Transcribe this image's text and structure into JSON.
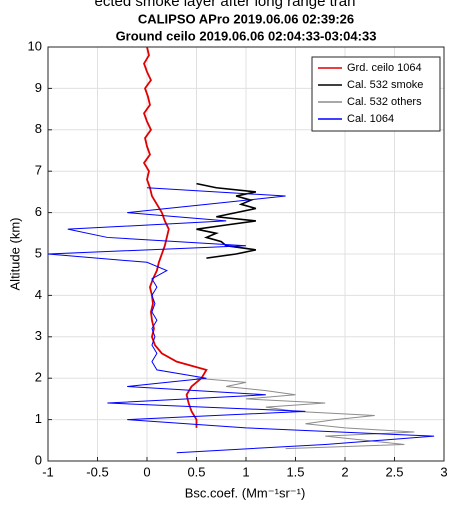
{
  "chart_data": {
    "type": "line",
    "header_fragment": "ected smoke layer after long range tran",
    "title": "CALIPSO APro 2019.06.06 02:39:26",
    "subtitle": "Ground ceilo 2019.06.06 02:04:33-03:04:33",
    "x_label": "Bsc.coef. (Mm⁻¹sr⁻¹)",
    "y_label": "Altitude (km)",
    "xlim": [
      -1,
      3
    ],
    "xticks": [
      -1,
      -0.5,
      0,
      0.5,
      1,
      1.5,
      2,
      2.5,
      3
    ],
    "ylim": [
      0,
      10
    ],
    "yticks": [
      0,
      1,
      2,
      3,
      4,
      5,
      6,
      7,
      8,
      9,
      10
    ],
    "grid": true,
    "legend": "upper right",
    "series": [
      {
        "name": "Grd. ceilo 1064",
        "color": "#e00000",
        "x": [
          0.5,
          0.5,
          0.45,
          0.42,
          0.4,
          0.45,
          0.55,
          0.6,
          0.3,
          0.15,
          0.08,
          0.05,
          0.07,
          0.05,
          0.04,
          0.06,
          0.05,
          0.03,
          0.06,
          0.1,
          0.12,
          0.15,
          0.18,
          0.2,
          0.22,
          0.18,
          0.15,
          0.1,
          0.05,
          0.03,
          0.0,
          0.02,
          -0.03,
          0.03,
          0.0,
          -0.02,
          0.04,
          0.0,
          -0.03,
          0.03,
          0.01,
          -0.02,
          0.04,
          0.0,
          -0.03,
          0.02,
          0.0
        ],
        "y": [
          0.8,
          1.0,
          1.2,
          1.4,
          1.6,
          1.8,
          2.0,
          2.2,
          2.4,
          2.6,
          2.8,
          3.0,
          3.2,
          3.4,
          3.6,
          3.8,
          4.0,
          4.2,
          4.4,
          4.6,
          4.8,
          5.0,
          5.2,
          5.4,
          5.6,
          5.8,
          6.0,
          6.2,
          6.4,
          6.6,
          6.8,
          7.0,
          7.2,
          7.4,
          7.6,
          7.8,
          8.0,
          8.2,
          8.4,
          8.6,
          8.8,
          9.0,
          9.2,
          9.4,
          9.6,
          9.8,
          10.0
        ]
      },
      {
        "name": "Cal. 532 smoke",
        "color": "#000000",
        "x": [
          0.6,
          0.9,
          1.1,
          0.8,
          0.75,
          0.6,
          0.7,
          0.5,
          0.8,
          1.1,
          0.7,
          0.9,
          1.1,
          0.95,
          1.05,
          0.9,
          1.1,
          0.7,
          0.5
        ],
        "y": [
          4.9,
          5.0,
          5.1,
          5.2,
          5.3,
          5.4,
          5.5,
          5.6,
          5.7,
          5.8,
          5.9,
          6.0,
          6.1,
          6.2,
          6.3,
          6.4,
          6.5,
          6.6,
          6.7
        ]
      },
      {
        "name": "Cal. 532 others",
        "color": "#8c8c8c",
        "x": [
          1.4,
          2.6,
          2.2,
          1.8,
          2.7,
          2.0,
          1.6,
          1.9,
          2.3,
          1.5,
          1.2,
          1.8,
          1.0,
          1.5,
          1.2,
          0.8,
          1.0,
          0.5
        ],
        "y": [
          0.3,
          0.4,
          0.5,
          0.6,
          0.7,
          0.8,
          0.9,
          1.0,
          1.1,
          1.2,
          1.3,
          1.4,
          1.5,
          1.6,
          1.7,
          1.8,
          1.9,
          2.0
        ]
      },
      {
        "name": "Cal. 1064",
        "color": "#0000ff",
        "x": [
          0.3,
          1.8,
          2.9,
          1.0,
          -0.2,
          1.6,
          -0.4,
          1.2,
          -0.2,
          0.6,
          0.1,
          0.05,
          0.1,
          0.05,
          0.08,
          0.05,
          0.1,
          0.05,
          0.08,
          0.05,
          0.1,
          0.05,
          0.2,
          0.0,
          -1.0,
          1.0,
          -0.4,
          -0.8,
          0.8,
          -0.2,
          0.6,
          1.4,
          0.0
        ],
        "y": [
          0.2,
          0.4,
          0.6,
          0.8,
          1.0,
          1.2,
          1.4,
          1.6,
          1.8,
          2.0,
          2.2,
          2.4,
          2.6,
          2.8,
          3.0,
          3.2,
          3.4,
          3.6,
          3.8,
          4.0,
          4.2,
          4.4,
          4.6,
          4.8,
          5.0,
          5.2,
          5.4,
          5.6,
          5.8,
          6.0,
          6.2,
          6.4,
          6.6
        ]
      }
    ]
  }
}
